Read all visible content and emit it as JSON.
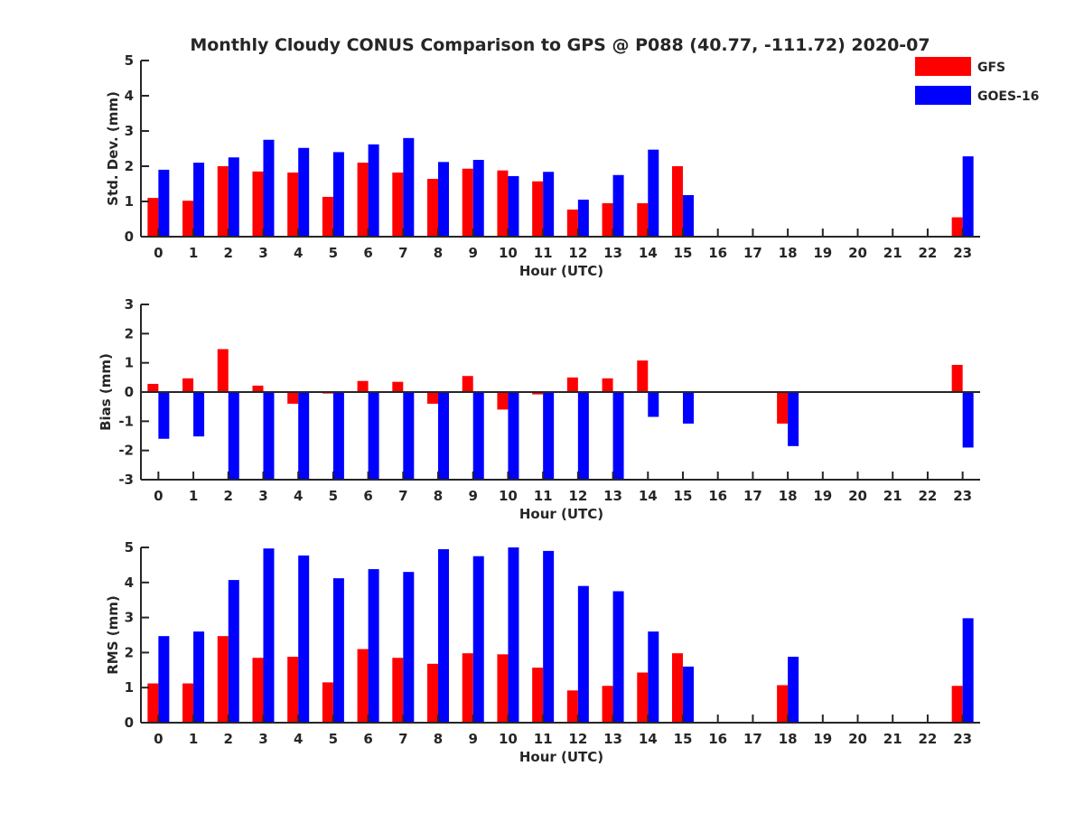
{
  "title": "Monthly Cloudy CONUS Comparison to GPS @ P088 (40.77, -111.72) 2020-07",
  "legend": {
    "placement": "top-right",
    "entries": [
      {
        "name": "GFS",
        "color": "#ff0000"
      },
      {
        "name": "GOES-16",
        "color": "#0000ff"
      }
    ]
  },
  "chart_data": [
    {
      "type": "bar",
      "xlabel": "Hour (UTC)",
      "ylabel": "Std. Dev. (mm)",
      "ylim": [
        0,
        5
      ],
      "yticks": [
        0,
        1,
        2,
        3,
        4,
        5
      ],
      "categories": [
        "0",
        "1",
        "2",
        "3",
        "4",
        "5",
        "6",
        "7",
        "8",
        "9",
        "10",
        "11",
        "12",
        "13",
        "14",
        "15",
        "16",
        "17",
        "18",
        "19",
        "20",
        "21",
        "22",
        "23"
      ],
      "series": [
        {
          "name": "GFS",
          "color": "#ff0000",
          "values": [
            1.1,
            1.02,
            2.0,
            1.85,
            1.82,
            1.13,
            2.1,
            1.82,
            1.64,
            1.93,
            1.88,
            1.57,
            0.77,
            0.95,
            0.95,
            2.0,
            null,
            null,
            null,
            null,
            null,
            null,
            null,
            0.55
          ]
        },
        {
          "name": "GOES-16",
          "color": "#0000ff",
          "values": [
            1.9,
            2.1,
            2.25,
            2.75,
            2.52,
            2.4,
            2.62,
            2.8,
            2.12,
            2.18,
            1.72,
            1.84,
            1.05,
            1.75,
            2.47,
            1.18,
            null,
            null,
            null,
            null,
            null,
            null,
            null,
            2.28
          ]
        }
      ]
    },
    {
      "type": "bar",
      "xlabel": "Hour (UTC)",
      "ylabel": "Bias (mm)",
      "ylim": [
        -3,
        3
      ],
      "yticks": [
        -3,
        -2,
        -1,
        0,
        1,
        2,
        3
      ],
      "categories": [
        "0",
        "1",
        "2",
        "3",
        "4",
        "5",
        "6",
        "7",
        "8",
        "9",
        "10",
        "11",
        "12",
        "13",
        "14",
        "15",
        "16",
        "17",
        "18",
        "19",
        "20",
        "21",
        "22",
        "23"
      ],
      "series": [
        {
          "name": "GFS",
          "color": "#ff0000",
          "values": [
            0.28,
            0.47,
            1.47,
            0.22,
            -0.4,
            -0.05,
            0.38,
            0.35,
            -0.4,
            0.55,
            -0.6,
            -0.08,
            0.5,
            0.47,
            1.08,
            -0.03,
            null,
            null,
            -1.08,
            null,
            null,
            null,
            null,
            0.93
          ]
        },
        {
          "name": "GOES-16",
          "color": "#0000ff",
          "values": [
            -1.6,
            -1.52,
            -3.0,
            -3.0,
            -3.0,
            -3.0,
            -3.0,
            -3.0,
            -3.0,
            -3.0,
            -3.0,
            -3.0,
            -3.0,
            -3.0,
            -0.85,
            -1.08,
            null,
            null,
            -1.85,
            null,
            null,
            null,
            null,
            -1.9
          ]
        }
      ]
    },
    {
      "type": "bar",
      "xlabel": "Hour (UTC)",
      "ylabel": "RMS (mm)",
      "ylim": [
        0,
        5
      ],
      "yticks": [
        0,
        1,
        2,
        3,
        4,
        5
      ],
      "categories": [
        "0",
        "1",
        "2",
        "3",
        "4",
        "5",
        "6",
        "7",
        "8",
        "9",
        "10",
        "11",
        "12",
        "13",
        "14",
        "15",
        "16",
        "17",
        "18",
        "19",
        "20",
        "21",
        "22",
        "23"
      ],
      "series": [
        {
          "name": "GFS",
          "color": "#ff0000",
          "values": [
            1.12,
            1.12,
            2.47,
            1.85,
            1.88,
            1.15,
            2.1,
            1.85,
            1.68,
            1.98,
            1.95,
            1.57,
            0.92,
            1.05,
            1.43,
            1.98,
            null,
            null,
            1.07,
            null,
            null,
            null,
            null,
            1.05
          ]
        },
        {
          "name": "GOES-16",
          "color": "#0000ff",
          "values": [
            2.47,
            2.6,
            4.07,
            4.97,
            4.77,
            4.12,
            4.38,
            4.3,
            4.95,
            4.75,
            5.0,
            4.9,
            3.9,
            3.75,
            2.6,
            1.6,
            null,
            null,
            1.88,
            null,
            null,
            null,
            null,
            2.98
          ]
        }
      ]
    }
  ]
}
